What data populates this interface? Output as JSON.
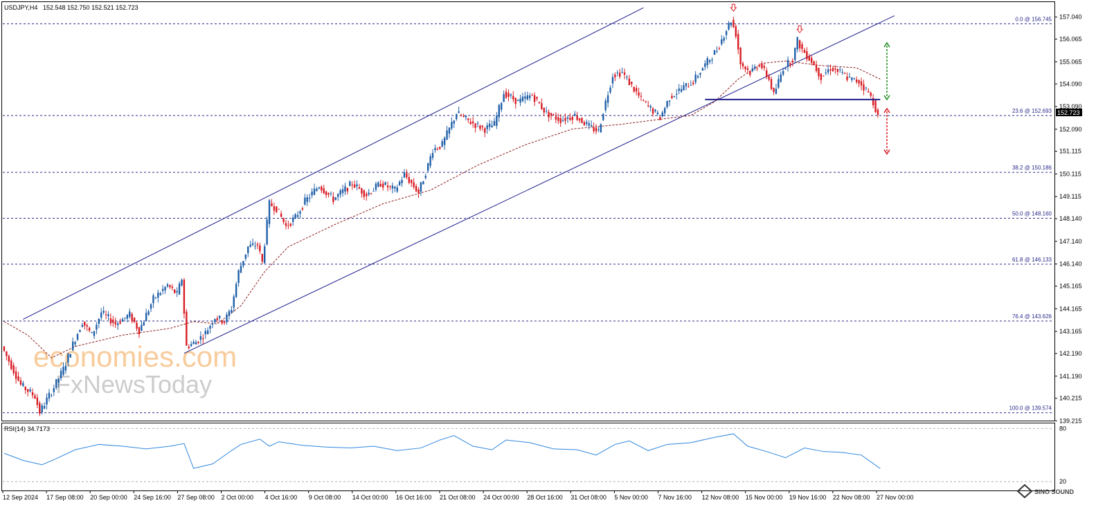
{
  "header": {
    "symbol": "USDJPY,H4",
    "ohlc": "152.548 152.750 152.521 152.723"
  },
  "watermark": {
    "line1": "economies.com",
    "line2": "FxNewsToday",
    "corner": "SINO SOUND"
  },
  "colors": {
    "bull": "#1f5fa8",
    "bear": "#d81b22",
    "channel": "#1a1a8c",
    "fib": "#2a2a8a",
    "ma": "#8b1a1a",
    "rsi": "#2e86de",
    "green_arrow": "#1a8a1a",
    "red_arrow": "#d81b22"
  },
  "chart_data": {
    "type": "candlestick",
    "instrument": "USDJPY",
    "timeframe": "H4",
    "last_price": "152.723",
    "price_axis": {
      "ylim": [
        138.9,
        157.45
      ],
      "ticks": [
        "157.040",
        "156.065",
        "155.065",
        "154.090",
        "153.090",
        "152.090",
        "151.115",
        "150.115",
        "149.115",
        "148.140",
        "147.140",
        "146.140",
        "145.165",
        "144.165",
        "143.165",
        "142.190",
        "141.190",
        "140.215",
        "139.215"
      ]
    },
    "time_axis": {
      "labels": [
        "12 Sep 2024",
        "17 Sep 08:00",
        "20 Sep 00:00",
        "24 Sep 16:00",
        "27 Sep 08:00",
        "2 Oct 00:00",
        "4 Oct 16:00",
        "9 Oct 08:00",
        "14 Oct 00:00",
        "16 Oct 16:00",
        "21 Oct 08:00",
        "24 Oct 00:00",
        "28 Oct 16:00",
        "31 Oct 08:00",
        "5 Nov 00:00",
        "7 Nov 16:00",
        "12 Nov 08:00",
        "15 Nov 00:00",
        "19 Nov 16:00",
        "22 Nov 08:00",
        "27 Nov 00:00"
      ]
    },
    "path": [
      [
        0,
        142.5
      ],
      [
        8,
        140.8
      ],
      [
        14,
        140.3
      ],
      [
        16,
        139.6
      ],
      [
        22,
        140.7
      ],
      [
        26,
        141.5
      ],
      [
        30,
        142.6
      ],
      [
        34,
        143.6
      ],
      [
        38,
        143.0
      ],
      [
        42,
        144.0
      ],
      [
        48,
        143.5
      ],
      [
        54,
        143.9
      ],
      [
        58,
        143.2
      ],
      [
        64,
        144.6
      ],
      [
        70,
        145.2
      ],
      [
        74,
        144.8
      ],
      [
        76,
        145.5
      ],
      [
        78,
        142.5
      ],
      [
        82,
        142.7
      ],
      [
        86,
        143.1
      ],
      [
        90,
        143.8
      ],
      [
        94,
        143.6
      ],
      [
        97,
        144.2
      ],
      [
        100,
        145.8
      ],
      [
        104,
        146.9
      ],
      [
        108,
        147.0
      ],
      [
        110,
        146.2
      ],
      [
        113,
        148.8
      ],
      [
        116,
        148.6
      ],
      [
        120,
        147.8
      ],
      [
        124,
        148.2
      ],
      [
        128,
        148.9
      ],
      [
        134,
        149.6
      ],
      [
        140,
        149.0
      ],
      [
        148,
        149.7
      ],
      [
        154,
        149.2
      ],
      [
        160,
        149.7
      ],
      [
        166,
        149.4
      ],
      [
        170,
        150.1
      ],
      [
        176,
        149.3
      ],
      [
        180,
        150.5
      ],
      [
        182,
        151.2
      ],
      [
        186,
        151.4
      ],
      [
        192,
        152.8
      ],
      [
        198,
        152.4
      ],
      [
        204,
        152.1
      ],
      [
        208,
        152.3
      ],
      [
        212,
        153.7
      ],
      [
        218,
        153.3
      ],
      [
        224,
        153.6
      ],
      [
        230,
        152.8
      ],
      [
        236,
        152.5
      ],
      [
        242,
        152.7
      ],
      [
        248,
        152.2
      ],
      [
        252,
        152.0
      ],
      [
        254,
        152.9
      ],
      [
        258,
        154.5
      ],
      [
        262,
        154.6
      ],
      [
        266,
        154.0
      ],
      [
        270,
        153.4
      ],
      [
        274,
        153.0
      ],
      [
        278,
        152.6
      ],
      [
        282,
        153.5
      ],
      [
        286,
        153.8
      ],
      [
        292,
        154.2
      ],
      [
        296,
        154.8
      ],
      [
        302,
        155.6
      ],
      [
        306,
        156.5
      ],
      [
        308,
        156.9
      ],
      [
        310,
        156.3
      ],
      [
        312,
        155.0
      ],
      [
        316,
        154.6
      ],
      [
        320,
        155.0
      ],
      [
        324,
        154.3
      ],
      [
        326,
        153.6
      ],
      [
        330,
        154.8
      ],
      [
        334,
        155.2
      ],
      [
        336,
        156.0
      ],
      [
        338,
        155.6
      ],
      [
        342,
        155.1
      ],
      [
        346,
        154.4
      ],
      [
        350,
        154.8
      ],
      [
        354,
        154.6
      ],
      [
        358,
        154.3
      ],
      [
        362,
        154.2
      ],
      [
        366,
        153.7
      ],
      [
        368,
        153.3
      ],
      [
        370,
        152.72
      ]
    ],
    "moving_average": [
      [
        0,
        143.6
      ],
      [
        10,
        143.0
      ],
      [
        20,
        142.0
      ],
      [
        30,
        142.5
      ],
      [
        50,
        143.0
      ],
      [
        70,
        143.3
      ],
      [
        80,
        143.6
      ],
      [
        90,
        143.5
      ],
      [
        100,
        144.3
      ],
      [
        110,
        145.8
      ],
      [
        120,
        146.9
      ],
      [
        140,
        147.9
      ],
      [
        160,
        148.8
      ],
      [
        180,
        149.4
      ],
      [
        200,
        150.5
      ],
      [
        220,
        151.4
      ],
      [
        240,
        152.1
      ],
      [
        260,
        152.3
      ],
      [
        290,
        152.7
      ],
      [
        300,
        153.3
      ],
      [
        310,
        154.3
      ],
      [
        320,
        155.0
      ],
      [
        330,
        155.1
      ],
      [
        345,
        154.9
      ],
      [
        360,
        154.8
      ],
      [
        370,
        154.3
      ]
    ],
    "rsi": {
      "label": "RSI(14) 34.7173",
      "levels": [
        "80",
        "20"
      ],
      "values": [
        [
          0,
          52
        ],
        [
          8,
          44
        ],
        [
          16,
          39
        ],
        [
          22,
          46
        ],
        [
          30,
          56
        ],
        [
          40,
          62
        ],
        [
          50,
          60
        ],
        [
          60,
          57
        ],
        [
          70,
          60
        ],
        [
          76,
          63
        ],
        [
          80,
          35
        ],
        [
          88,
          40
        ],
        [
          96,
          55
        ],
        [
          100,
          62
        ],
        [
          108,
          68
        ],
        [
          112,
          60
        ],
        [
          116,
          65
        ],
        [
          126,
          61
        ],
        [
          136,
          59
        ],
        [
          146,
          58
        ],
        [
          156,
          60
        ],
        [
          166,
          55
        ],
        [
          176,
          58
        ],
        [
          184,
          67
        ],
        [
          190,
          72
        ],
        [
          198,
          60
        ],
        [
          206,
          56
        ],
        [
          212,
          67
        ],
        [
          222,
          64
        ],
        [
          232,
          57
        ],
        [
          242,
          56
        ],
        [
          250,
          50
        ],
        [
          258,
          62
        ],
        [
          264,
          66
        ],
        [
          272,
          55
        ],
        [
          280,
          62
        ],
        [
          290,
          64
        ],
        [
          300,
          70
        ],
        [
          308,
          74
        ],
        [
          314,
          60
        ],
        [
          322,
          54
        ],
        [
          330,
          47
        ],
        [
          338,
          58
        ],
        [
          346,
          54
        ],
        [
          354,
          53
        ],
        [
          362,
          50
        ],
        [
          370,
          34.7
        ]
      ]
    },
    "fib_levels": [
      {
        "level": "0.0 @ 156.745",
        "price": 156.745
      },
      {
        "level": "23.6 @ 152.693",
        "price": 152.693
      },
      {
        "level": "38.2 @ 150.186",
        "price": 150.186
      },
      {
        "level": "50.0 @ 148.160",
        "price": 148.16
      },
      {
        "level": "61.8 @ 146.133",
        "price": 146.133
      },
      {
        "level": "76.4 @ 143.626",
        "price": 143.626
      },
      {
        "level": "100.0 @ 139.574",
        "price": 139.574
      }
    ],
    "annotations": {
      "support_level": 153.4,
      "upper_channel": [
        [
          8,
          143.7
        ],
        [
          270,
          157.45
        ]
      ],
      "lower_channel": [
        [
          76,
          142.2
        ],
        [
          376,
          157.1
        ]
      ],
      "target_up": [
        155.9,
        153.4
      ],
      "target_down": [
        153.0,
        151.0
      ]
    }
  }
}
